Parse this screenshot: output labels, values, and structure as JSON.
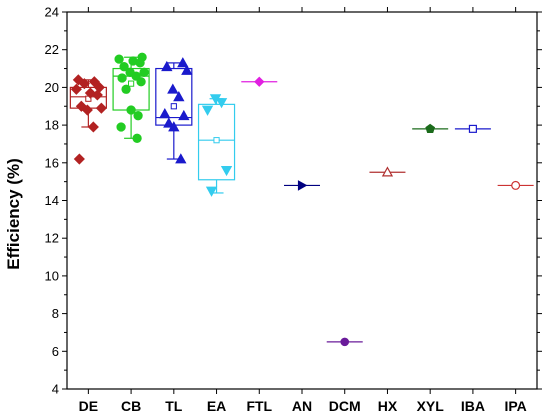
{
  "chart_data": {
    "type": "box",
    "title": "",
    "xlabel": "",
    "ylabel": "Efficiency (%)",
    "ylim": [
      4,
      24
    ],
    "yticks": [
      4,
      6,
      8,
      10,
      12,
      14,
      16,
      18,
      20,
      22,
      24
    ],
    "grid": false,
    "legend": "none",
    "categories": [
      "DE",
      "CB",
      "TL",
      "EA",
      "FTL",
      "AN",
      "DCM",
      "HX",
      "XYL",
      "IBA",
      "IPA"
    ],
    "groups": [
      {
        "label": "DE",
        "color": "#b22222",
        "marker": "diamond",
        "filled": true,
        "box": {
          "q1": 18.9,
          "median": 19.5,
          "q3": 20.0,
          "mean": 19.4,
          "whisker_low": 17.9,
          "whisker_high": 20.4
        },
        "points": [
          20.4,
          20.3,
          20.2,
          20.0,
          19.9,
          19.7,
          19.6,
          19.0,
          18.9,
          18.8,
          17.9,
          16.2
        ]
      },
      {
        "label": "CB",
        "color": "#22cc22",
        "marker": "circle",
        "filled": true,
        "box": {
          "q1": 18.8,
          "median": 20.6,
          "q3": 21.0,
          "mean": 20.2,
          "whisker_low": 17.3,
          "whisker_high": 21.6
        },
        "points": [
          21.6,
          21.5,
          21.4,
          21.3,
          21.1,
          20.8,
          20.8,
          20.6,
          20.5,
          20.3,
          19.9,
          18.8,
          18.5,
          17.9,
          17.3
        ]
      },
      {
        "label": "TL",
        "color": "#1a1acc",
        "marker": "triangle-up",
        "filled": true,
        "box": {
          "q1": 18.0,
          "median": 18.4,
          "q3": 21.0,
          "mean": 19.0,
          "whisker_low": 16.2,
          "whisker_high": 21.3
        },
        "points": [
          21.3,
          21.1,
          20.9,
          19.9,
          19.5,
          18.6,
          18.5,
          18.1,
          17.9,
          16.2
        ]
      },
      {
        "label": "EA",
        "color": "#33ccee",
        "marker": "triangle-down",
        "filled": true,
        "box": {
          "q1": 15.1,
          "median": 17.2,
          "q3": 19.1,
          "mean": 17.2,
          "whisker_low": 14.4,
          "whisker_high": 19.4
        },
        "points": [
          19.4,
          19.2,
          18.8,
          15.6,
          14.5
        ]
      },
      {
        "label": "FTL",
        "color": "#e020e0",
        "marker": "diamond",
        "filled": true,
        "single": 20.3
      },
      {
        "label": "AN",
        "color": "#000080",
        "marker": "triangle-right",
        "filled": true,
        "single": 14.8
      },
      {
        "label": "DCM",
        "color": "#6a1b9a",
        "marker": "circle",
        "filled": true,
        "single": 6.5
      },
      {
        "label": "HX",
        "color": "#b03030",
        "marker": "triangle-up",
        "filled": false,
        "single": 15.5
      },
      {
        "label": "XYL",
        "color": "#1b6b1b",
        "marker": "pentagon",
        "filled": true,
        "single": 17.8
      },
      {
        "label": "IBA",
        "color": "#1a1acc",
        "marker": "square",
        "filled": false,
        "single": 17.8
      },
      {
        "label": "IPA",
        "color": "#cc3333",
        "marker": "circle",
        "filled": false,
        "single": 14.8
      }
    ]
  }
}
